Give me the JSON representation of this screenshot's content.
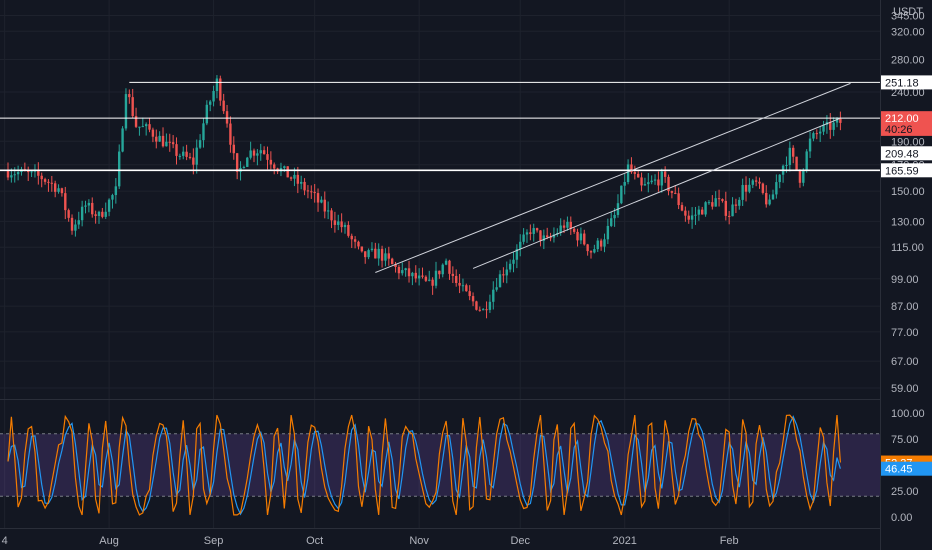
{
  "chart_data": [
    {
      "type": "candlestick",
      "currency": "USDT",
      "y_scale": "log",
      "y_ticks": [
        "345.00",
        "320.00",
        "280.00",
        "240.00",
        "212.00",
        "190.00",
        "170.00",
        "150.00",
        "130.00",
        "115.00",
        "99.00",
        "87.00",
        "77.00",
        "67.00",
        "59.00"
      ],
      "x_ticks": [
        "4",
        "Aug",
        "Sep",
        "Oct",
        "Nov",
        "Dec",
        "2021",
        "Feb"
      ],
      "x_tick_day": [
        -1,
        30,
        61,
        91,
        122,
        152,
        183,
        214
      ],
      "price_tags": [
        {
          "label": "251.18",
          "value": 251.18,
          "bg": "#ffffff",
          "fg": "#131722",
          "line": true
        },
        {
          "label": "212.00",
          "value": 212.0,
          "bg": "#ef5350",
          "fg": "#ffffff",
          "line": true
        },
        {
          "label": "40:26",
          "value": 201.5,
          "bg": "#ef5350",
          "fg": "#131722",
          "line": false
        },
        {
          "label": "209.48",
          "value": 179.5,
          "bg": "#ffffff",
          "fg": "#131722",
          "line": false
        },
        {
          "label": "165.59",
          "value": 165.59,
          "bg": "#ffffff",
          "fg": "#131722",
          "line": true
        }
      ],
      "trendlines": [
        {
          "from": [
            109,
            102
          ],
          "to": [
            250,
            250
          ]
        },
        {
          "from": [
            138,
            104
          ],
          "to": [
            247,
            212
          ]
        }
      ],
      "price_path": [
        [
          0,
          165
        ],
        [
          5,
          163
        ],
        [
          10,
          160
        ],
        [
          15,
          152
        ],
        [
          19,
          126
        ],
        [
          23,
          140
        ],
        [
          27,
          133
        ],
        [
          32,
          150
        ],
        [
          35,
          245
        ],
        [
          38,
          205
        ],
        [
          42,
          200
        ],
        [
          46,
          190
        ],
        [
          50,
          180
        ],
        [
          55,
          172
        ],
        [
          59,
          220
        ],
        [
          62,
          252
        ],
        [
          65,
          210
        ],
        [
          68,
          160
        ],
        [
          71,
          180
        ],
        [
          75,
          183
        ],
        [
          80,
          168
        ],
        [
          85,
          158
        ],
        [
          90,
          148
        ],
        [
          95,
          135
        ],
        [
          100,
          125
        ],
        [
          105,
          110
        ],
        [
          110,
          112
        ],
        [
          115,
          104
        ],
        [
          120,
          100
        ],
        [
          125,
          96
        ],
        [
          130,
          108
        ],
        [
          133,
          97
        ],
        [
          137,
          90
        ],
        [
          141,
          85
        ],
        [
          145,
          98
        ],
        [
          150,
          110
        ],
        [
          155,
          125
        ],
        [
          160,
          118
        ],
        [
          165,
          128
        ],
        [
          170,
          120
        ],
        [
          173,
          113
        ],
        [
          176,
          118
        ],
        [
          180,
          133
        ],
        [
          184,
          168
        ],
        [
          188,
          152
        ],
        [
          194,
          160
        ],
        [
          198,
          146
        ],
        [
          202,
          131
        ],
        [
          206,
          138
        ],
        [
          210,
          144
        ],
        [
          214,
          135
        ],
        [
          218,
          152
        ],
        [
          222,
          155
        ],
        [
          226,
          140
        ],
        [
          229,
          165
        ],
        [
          232,
          180
        ],
        [
          235,
          160
        ],
        [
          238,
          190
        ],
        [
          241,
          200
        ],
        [
          245,
          205
        ],
        [
          247,
          208
        ]
      ]
    },
    {
      "type": "line",
      "indicator": "oscillator",
      "y_ticks": [
        "100.00",
        "75.00",
        "50.00",
        "25.00",
        "0.00"
      ],
      "ylim": [
        0,
        100
      ],
      "band": [
        20,
        80
      ],
      "current": [
        {
          "label": "52.37",
          "value": 52.37,
          "color": "#f57c00"
        },
        {
          "label": "46.45",
          "value": 46.45,
          "color": "#2196f3"
        }
      ]
    }
  ]
}
